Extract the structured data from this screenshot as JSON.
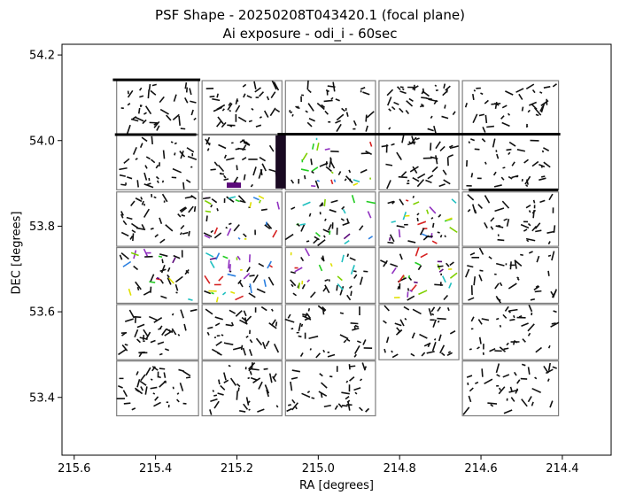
{
  "chart_data": {
    "type": "scatter",
    "title": "PSF Shape - 20250208T043420.1 (focal plane)",
    "subtitle": "Ai exposure - odi_i - 60sec",
    "xlabel": "RA [degrees]",
    "ylabel": "DEC [degrees]",
    "xlim": [
      215.63,
      214.28
    ],
    "ylim": [
      53.265,
      54.225
    ],
    "x_inverted": true,
    "xticks": [
      215.6,
      215.4,
      215.2,
      215.0,
      214.8,
      214.6,
      214.4
    ],
    "xtick_labels": [
      "215.6",
      "215.4",
      "215.2",
      "215.0",
      "214.8",
      "214.6",
      "214.4"
    ],
    "yticks": [
      53.4,
      53.6,
      53.8,
      54.0,
      54.2
    ],
    "ytick_labels": [
      "53.4",
      "53.6",
      "53.8",
      "54.0",
      "54.2"
    ],
    "grid": false,
    "ota_columns_ra": [
      [
        215.5,
        215.29
      ],
      [
        215.29,
        215.085
      ],
      [
        215.085,
        214.855
      ],
      [
        214.855,
        214.65
      ],
      [
        214.65,
        214.405
      ]
    ],
    "ota_rows_dec": [
      [
        54.14,
        54.015
      ],
      [
        54.013,
        53.885
      ],
      [
        53.88,
        53.753
      ],
      [
        53.75,
        53.62
      ],
      [
        53.617,
        53.488
      ],
      [
        53.485,
        53.357
      ]
    ],
    "missing_otas": [
      [
        5,
        3
      ]
    ],
    "colors": {
      "frame": "#7f7f7f",
      "default_segment": "#000000",
      "purple": "#5b0a7a",
      "green": "#22cc22",
      "yellow": "#e0e000",
      "blue": "#2a7fe0",
      "red": "#d62020",
      "cyan": "#20c0c0"
    }
  }
}
